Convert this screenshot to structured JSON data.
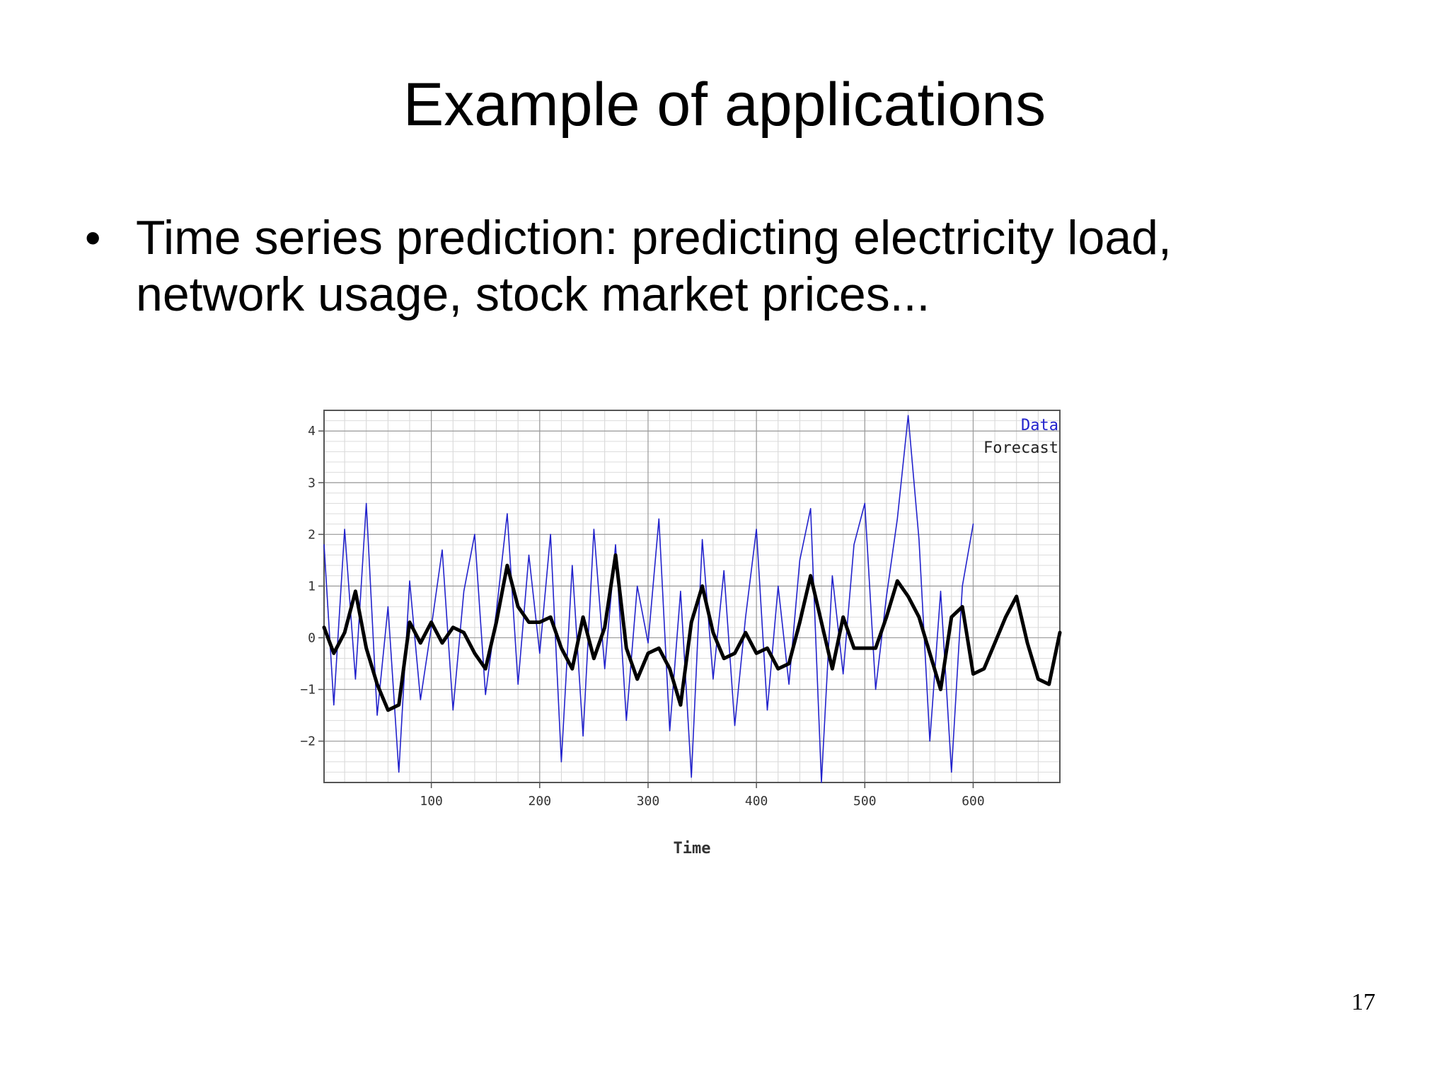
{
  "slide": {
    "title": "Example of applications",
    "bullet": "Time series prediction: predicting electricity load, network usage, stock market prices...",
    "page_number": "17"
  },
  "chart_data": {
    "type": "line",
    "xlabel": "Time",
    "ylabel": "",
    "xlim": [
      1,
      680
    ],
    "ylim": [
      -2.8,
      4.4
    ],
    "xticks": [
      100,
      200,
      300,
      400,
      500,
      600
    ],
    "yticks": [
      -2,
      -1,
      0,
      1,
      2,
      3,
      4
    ],
    "grid": true,
    "legend": "top-right",
    "series": [
      {
        "name": "Data",
        "color": "#2222cc",
        "x": [
          1,
          10,
          20,
          30,
          40,
          50,
          60,
          70,
          80,
          90,
          100,
          110,
          120,
          130,
          140,
          150,
          160,
          170,
          180,
          190,
          200,
          210,
          220,
          230,
          240,
          250,
          260,
          270,
          280,
          290,
          300,
          310,
          320,
          330,
          340,
          350,
          360,
          370,
          380,
          390,
          400,
          410,
          420,
          430,
          440,
          450,
          460,
          470,
          480,
          490,
          500,
          510,
          520,
          530,
          540,
          550,
          560,
          570,
          580,
          590,
          600
        ],
        "y": [
          1.8,
          -1.3,
          2.1,
          -0.8,
          2.6,
          -1.5,
          0.6,
          -2.6,
          1.1,
          -1.2,
          0.2,
          1.7,
          -1.4,
          0.9,
          2.0,
          -1.1,
          0.5,
          2.4,
          -0.9,
          1.6,
          -0.3,
          2.0,
          -2.4,
          1.4,
          -1.9,
          2.1,
          -0.6,
          1.8,
          -1.6,
          1.0,
          -0.1,
          2.3,
          -1.8,
          0.9,
          -2.7,
          1.9,
          -0.8,
          1.3,
          -1.7,
          0.4,
          2.1,
          -1.4,
          1.0,
          -0.9,
          1.5,
          2.5,
          -2.8,
          1.2,
          -0.7,
          1.8,
          2.6,
          -1.0,
          0.8,
          2.3,
          4.3,
          1.9,
          -2.0,
          0.9,
          -2.6,
          1.0,
          2.2
        ]
      },
      {
        "name": "Forecast",
        "color": "#000000",
        "x": [
          1,
          10,
          20,
          30,
          40,
          50,
          60,
          70,
          80,
          90,
          100,
          110,
          120,
          130,
          140,
          150,
          160,
          170,
          180,
          190,
          200,
          210,
          220,
          230,
          240,
          250,
          260,
          270,
          280,
          290,
          300,
          310,
          320,
          330,
          340,
          350,
          360,
          370,
          380,
          390,
          400,
          410,
          420,
          430,
          440,
          450,
          460,
          470,
          480,
          490,
          500,
          510,
          520,
          530,
          540,
          550,
          560,
          570,
          580,
          590,
          600,
          610,
          620,
          630,
          640,
          650,
          660,
          670,
          680
        ],
        "y": [
          0.2,
          -0.3,
          0.1,
          0.9,
          -0.2,
          -0.9,
          -1.4,
          -1.3,
          0.3,
          -0.1,
          0.3,
          -0.1,
          0.2,
          0.1,
          -0.3,
          -0.6,
          0.3,
          1.4,
          0.6,
          0.3,
          0.3,
          0.4,
          -0.2,
          -0.6,
          0.4,
          -0.4,
          0.2,
          1.6,
          -0.2,
          -0.8,
          -0.3,
          -0.2,
          -0.6,
          -1.3,
          0.3,
          1.0,
          0.1,
          -0.4,
          -0.3,
          0.1,
          -0.3,
          -0.2,
          -0.6,
          -0.5,
          0.3,
          1.2,
          0.3,
          -0.6,
          0.4,
          -0.2,
          -0.2,
          -0.2,
          0.4,
          1.1,
          0.8,
          0.4,
          -0.3,
          -1.0,
          0.4,
          0.6,
          -0.7,
          -0.6,
          -0.1,
          0.4,
          0.8,
          -0.1,
          -0.8,
          -0.9,
          0.1
        ]
      }
    ]
  }
}
